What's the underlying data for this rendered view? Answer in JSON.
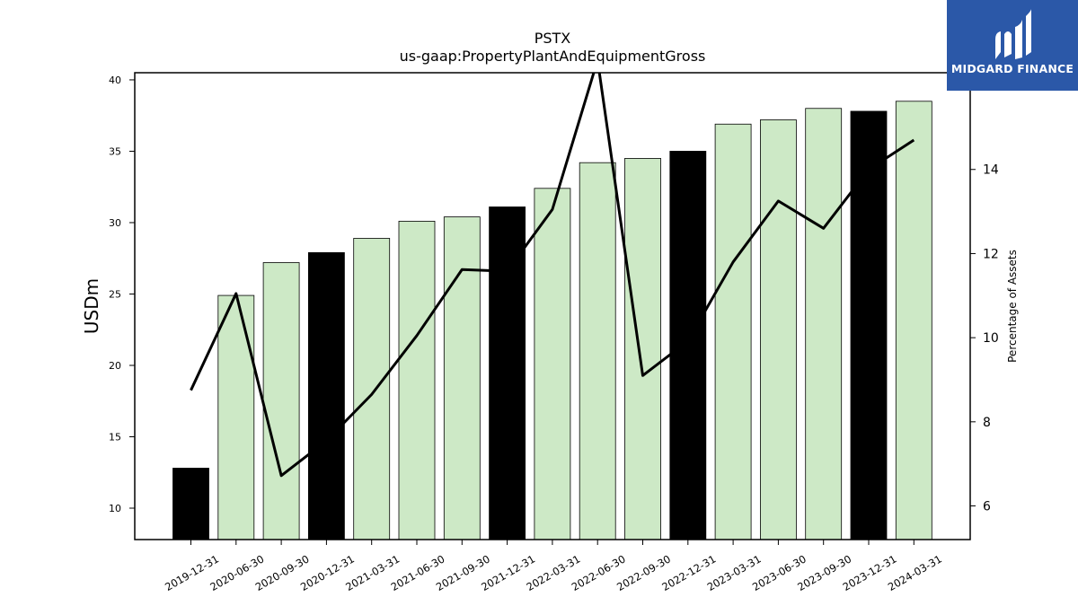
{
  "chart_data": {
    "type": "bar",
    "title": "PSTX",
    "subtitle": "us-gaap:PropertyPlantAndEquipmentGross",
    "ylabel": "USDm",
    "y2label": "Percentage of Assets",
    "ylim": [
      7.8,
      40.5
    ],
    "y2lim": [
      5.2,
      16.3
    ],
    "yticks": [
      10,
      15,
      20,
      25,
      30,
      35,
      40
    ],
    "y2ticks": [
      6,
      8,
      10,
      12,
      14
    ],
    "categories": [
      "2019-12-31",
      "2020-06-30",
      "2020-09-30",
      "2020-12-31",
      "2021-03-31",
      "2021-06-30",
      "2021-09-30",
      "2021-12-31",
      "2022-03-31",
      "2022-06-30",
      "2022-09-30",
      "2022-12-31",
      "2023-03-31",
      "2023-06-30",
      "2023-09-30",
      "2023-12-31",
      "2024-03-31"
    ],
    "series": [
      {
        "type": "bar",
        "values": [
          12.8,
          24.9,
          27.2,
          27.9,
          28.9,
          30.1,
          30.4,
          31.1,
          32.4,
          34.2,
          34.5,
          35.0,
          36.9,
          37.2,
          38.0,
          37.8,
          38.5
        ]
      },
      {
        "type": "line",
        "axis": "right",
        "values": [
          8.75,
          11.05,
          6.72,
          7.55,
          8.65,
          10.05,
          11.62,
          11.58,
          13.05,
          16.6,
          9.1,
          9.92,
          11.8,
          13.25,
          12.6,
          14.0,
          14.7
        ]
      }
    ],
    "bar_colors": {
      "year_end": "#000000",
      "quarter": "#cde9c6"
    },
    "year_end_flags": [
      true,
      false,
      false,
      true,
      false,
      false,
      false,
      true,
      false,
      false,
      false,
      true,
      false,
      false,
      false,
      true,
      false
    ],
    "line_color": "#000000",
    "grid": false
  },
  "logo": {
    "text": "MIDGARD FINANCE",
    "background": "#2b58a8"
  }
}
